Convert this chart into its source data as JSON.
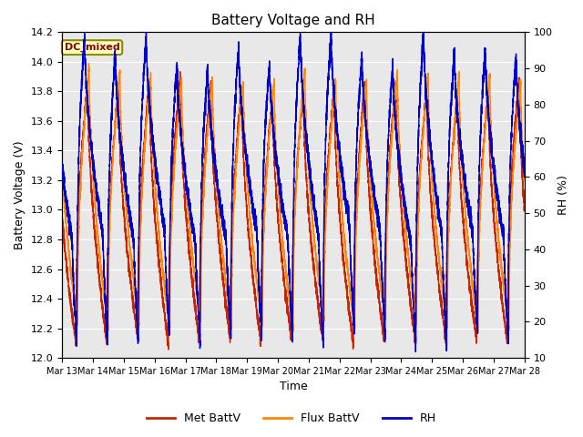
{
  "title": "Battery Voltage and RH",
  "xlabel": "Time",
  "ylabel_left": "Battery Voltage (V)",
  "ylabel_right": "RH (%)",
  "annotation_text": "DC_mixed",
  "annotation_facecolor": "#FFFFC0",
  "annotation_edgecolor": "#8B8B00",
  "annotation_textcolor": "#8B0000",
  "ylim_left": [
    12.0,
    14.2
  ],
  "ylim_right": [
    10,
    100
  ],
  "yticks_left": [
    12.0,
    12.2,
    12.4,
    12.6,
    12.8,
    13.0,
    13.2,
    13.4,
    13.6,
    13.8,
    14.0,
    14.2
  ],
  "yticks_right": [
    10,
    20,
    30,
    40,
    50,
    60,
    70,
    80,
    90,
    100
  ],
  "xtick_labels": [
    "Mar 13",
    "Mar 14",
    "Mar 15",
    "Mar 16",
    "Mar 17",
    "Mar 18",
    "Mar 19",
    "Mar 20",
    "Mar 21",
    "Mar 22",
    "Mar 23",
    "Mar 24",
    "Mar 25",
    "Mar 26",
    "Mar 27",
    "Mar 28"
  ],
  "color_metbatt": "#CC2200",
  "color_fluxbatt": "#FF8800",
  "color_rh": "#0000CC",
  "legend_labels": [
    "Met BattV",
    "Flux BattV",
    "RH"
  ],
  "axes_facecolor": "#E8E8E8",
  "figure_facecolor": "#FFFFFF",
  "grid_color": "#FFFFFF",
  "linewidth": 1.0,
  "n_days": 15,
  "pts_per_day": 500
}
